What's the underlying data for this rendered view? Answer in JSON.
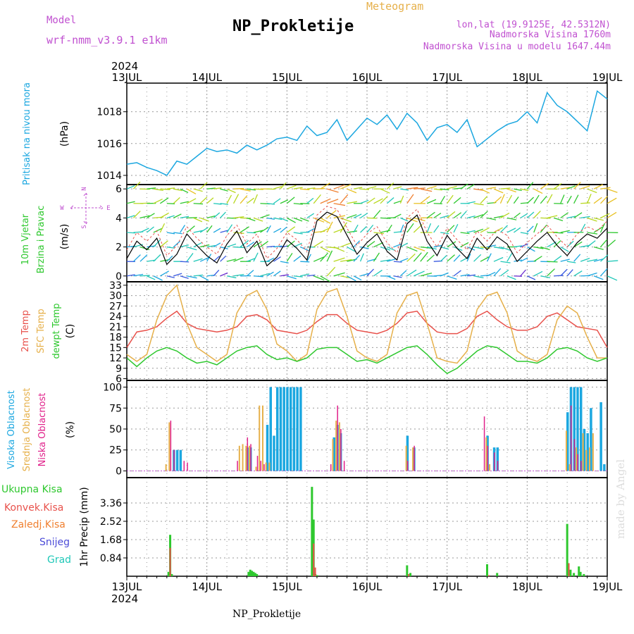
{
  "header": {
    "model_label": "Model",
    "model_name": "wrf-nmm_v3.9.1  e1km",
    "title": "NP_Prokletije",
    "meteogram_label": "Meteogram",
    "location_lines": [
      "lon,lat (19.9125E, 42.5312N)",
      "Nadmorska Visina 1760m",
      "Nadmorska Visina u modelu 1647.44m"
    ],
    "year": "2024"
  },
  "footer": {
    "station": "NP_Prokletije",
    "credit": "made by Angel",
    "year": "2024"
  },
  "colors": {
    "pressure": "#1ba7e0",
    "temp2m": "#e8514b",
    "sfc_temp": "#e6b04a",
    "dewpoint": "#2ec82e",
    "cloud_high": "#1ba7e0",
    "cloud_mid": "#e6b04a",
    "cloud_low": "#e0208a",
    "precip_total": "#2ec82e",
    "precip_conv": "#e8514b",
    "precip_frozen": "#f08030",
    "snow": "#4c4cd8",
    "hail": "#20c8b8",
    "wind_speed": "#000000",
    "wind_axis_label": "#c050d0",
    "credit": "#dddddd"
  },
  "chart_data": [
    {
      "type": "line",
      "panel": "pressure",
      "ylabel_left": "Pritisak na nivou mora",
      "ylabel_unit": "(hPa)",
      "x_ticks": [
        "13JUL",
        "14JUL",
        "15JUL",
        "16JUL",
        "17JUL",
        "18JUL",
        "19JUL"
      ],
      "ylim": [
        1013.5,
        1019.8
      ],
      "yticks": [
        1014,
        1016,
        1018
      ],
      "grid": true,
      "x_hours": [
        0,
        3,
        6,
        9,
        12,
        15,
        18,
        21,
        24,
        27,
        30,
        33,
        36,
        39,
        42,
        45,
        48,
        51,
        54,
        57,
        60,
        63,
        66,
        69,
        72,
        75,
        78,
        81,
        84,
        87,
        90,
        93,
        96,
        99,
        102,
        105,
        108,
        111,
        114,
        117,
        120,
        123,
        126,
        129,
        132,
        135,
        138,
        141,
        144
      ],
      "series": [
        {
          "values": [
            1014.7,
            1014.8,
            1014.5,
            1014.3,
            1014.0,
            1014.9,
            1014.7,
            1015.2,
            1015.7,
            1015.5,
            1015.6,
            1015.4,
            1015.9,
            1015.6,
            1015.9,
            1016.3,
            1016.4,
            1016.2,
            1017.1,
            1016.5,
            1016.7,
            1017.5,
            1016.2,
            1016.9,
            1017.6,
            1017.2,
            1017.8,
            1016.9,
            1017.9,
            1017.3,
            1016.2,
            1017.0,
            1017.2,
            1016.7,
            1017.5,
            1015.8,
            1016.3,
            1016.8,
            1017.2,
            1017.4,
            1018.0,
            1017.3,
            1019.2,
            1018.4,
            1018.0,
            1017.4,
            1016.8,
            1019.3,
            1018.8
          ]
        }
      ]
    },
    {
      "type": "line",
      "panel": "wind",
      "ylabel_left": [
        "10m Vjetar",
        "Brzina i Pravac"
      ],
      "ylabel_unit": "(m/s)",
      "compass": [
        "N",
        "E",
        "W",
        "S"
      ],
      "ylim": [
        -0.4,
        6.3
      ],
      "yticks": [
        0,
        2,
        4,
        6
      ],
      "grid": true,
      "x_hours": [
        0,
        3,
        6,
        9,
        12,
        15,
        18,
        21,
        24,
        27,
        30,
        33,
        36,
        39,
        42,
        45,
        48,
        51,
        54,
        57,
        60,
        63,
        66,
        69,
        72,
        75,
        78,
        81,
        84,
        87,
        90,
        93,
        96,
        99,
        102,
        105,
        108,
        111,
        114,
        117,
        120,
        123,
        126,
        129,
        132,
        135,
        138,
        141,
        144
      ],
      "series": [
        {
          "name": "speed",
          "values": [
            1.2,
            2.4,
            1.8,
            2.6,
            0.8,
            1.5,
            2.9,
            2.1,
            1.4,
            0.9,
            2.2,
            3.1,
            1.6,
            2.4,
            0.7,
            1.3,
            2.5,
            1.9,
            1.1,
            3.8,
            4.4,
            4.1,
            2.8,
            1.5,
            2.3,
            2.9,
            1.7,
            1.1,
            3.6,
            4.2,
            2.4,
            1.4,
            2.8,
            1.9,
            1.2,
            2.6,
            1.8,
            2.7,
            2.2,
            1.0,
            1.7,
            2.4,
            3.0,
            2.1,
            1.4,
            2.3,
            2.9,
            2.6,
            3.3
          ]
        },
        {
          "name": "gust",
          "values": [
            1.8,
            3.0,
            2.4,
            3.1,
            1.4,
            2.1,
            3.4,
            2.6,
            2.0,
            1.5,
            2.8,
            3.5,
            2.2,
            2.9,
            1.2,
            1.9,
            3.0,
            2.5,
            1.7,
            4.2,
            4.8,
            4.6,
            3.3,
            2.1,
            2.9,
            3.4,
            2.3,
            1.6,
            4.0,
            4.6,
            3.0,
            2.0,
            3.3,
            2.5,
            1.8,
            3.1,
            2.4,
            3.2,
            2.8,
            1.6,
            2.3,
            2.9,
            3.5,
            2.7,
            2.0,
            2.9,
            3.4,
            3.1,
            3.8
          ]
        }
      ]
    },
    {
      "type": "line",
      "panel": "temperature",
      "ylabel_left": [
        "2m Temp",
        "SFC Temp",
        "dewpt Temp"
      ],
      "ylabel_unit": "(C)",
      "ylim": [
        5.5,
        34
      ],
      "yticks": [
        6,
        9,
        12,
        15,
        18,
        21,
        24,
        27,
        30,
        33
      ],
      "grid": true,
      "x_hours": [
        0,
        3,
        6,
        9,
        12,
        15,
        18,
        21,
        24,
        27,
        30,
        33,
        36,
        39,
        42,
        45,
        48,
        51,
        54,
        57,
        60,
        63,
        66,
        69,
        72,
        75,
        78,
        81,
        84,
        87,
        90,
        93,
        96,
        99,
        102,
        105,
        108,
        111,
        114,
        117,
        120,
        123,
        126,
        129,
        132,
        135,
        138,
        141,
        144
      ],
      "series": [
        {
          "name": "2m Temp",
          "values": [
            15,
            19.5,
            20,
            21,
            23.5,
            25.5,
            22,
            20.5,
            20,
            19.5,
            20,
            21,
            24,
            24.5,
            23,
            20,
            19.5,
            19,
            20,
            22.5,
            24.5,
            24.5,
            22,
            20,
            19.5,
            19,
            20,
            22,
            25,
            25.5,
            22,
            19.5,
            19,
            19,
            20.5,
            24,
            25.5,
            23,
            21,
            20,
            20,
            21,
            24,
            25,
            23,
            21,
            20.5,
            20,
            15
          ]
        },
        {
          "name": "SFC Temp",
          "values": [
            13,
            11,
            13,
            23,
            30,
            33,
            22,
            15,
            13,
            11,
            13,
            25,
            30,
            31.5,
            26,
            16,
            14,
            11,
            13,
            26,
            31,
            32,
            24,
            14,
            12,
            11,
            13,
            25,
            30,
            31,
            22,
            12,
            11,
            10.5,
            14,
            26,
            30,
            31,
            25,
            14,
            12,
            11,
            13,
            23,
            27,
            25,
            18,
            12,
            12
          ]
        },
        {
          "name": "dewpt Temp",
          "values": [
            12,
            9.5,
            12,
            14,
            15,
            14,
            12,
            10.5,
            11,
            10,
            12,
            14,
            15,
            15.5,
            13,
            11.5,
            12,
            11,
            12,
            14.5,
            15,
            15,
            13,
            11,
            11.5,
            10.5,
            12,
            13.5,
            15,
            15.5,
            13,
            10,
            7.5,
            9,
            11.5,
            14,
            15.5,
            15,
            13,
            11,
            11,
            10.5,
            12,
            14.5,
            15,
            14,
            12,
            11,
            12
          ]
        }
      ]
    },
    {
      "type": "bar",
      "panel": "cloud",
      "ylabel_left": [
        "Visoka Oblacnost",
        "Srednja Oblacnost",
        "Niska Oblacnost"
      ],
      "ylabel_unit": "(%)",
      "ylim": [
        0,
        100
      ],
      "yticks": [
        0,
        25,
        50,
        75,
        100
      ],
      "grid": true,
      "series": [
        {
          "name": "Visoka Oblacnost",
          "x_hours": [
            14,
            15,
            16,
            36,
            37,
            42,
            43,
            44,
            45,
            46,
            47,
            48,
            49,
            50,
            51,
            52,
            53,
            54,
            62,
            63,
            64,
            84,
            86,
            108,
            110,
            111,
            132,
            133,
            134,
            135,
            136,
            137,
            138,
            139,
            140,
            141,
            142,
            143
          ],
          "values": [
            25,
            25,
            25,
            28,
            28,
            55,
            100,
            42,
            100,
            100,
            100,
            100,
            100,
            100,
            100,
            100,
            0,
            0,
            40,
            55,
            45,
            42,
            28,
            42,
            28,
            28,
            70,
            100,
            100,
            100,
            100,
            50,
            45,
            75,
            0,
            0,
            82,
            8
          ]
        },
        {
          "name": "Srednja Oblacnost",
          "x_hours": [
            12,
            13,
            34,
            35,
            36,
            37,
            39,
            40,
            41,
            42,
            43,
            62,
            63,
            64,
            84,
            86,
            108,
            109,
            132,
            133,
            135,
            137,
            138,
            139,
            140
          ],
          "values": [
            8,
            58,
            30,
            32,
            30,
            30,
            5,
            78,
            78,
            10,
            10,
            38,
            60,
            58,
            30,
            28,
            40,
            8,
            48,
            8,
            28,
            45,
            25,
            28,
            45
          ]
        },
        {
          "name": "Niska Oblacnost",
          "x_hours": [
            13,
            14,
            17,
            18,
            33,
            36,
            37,
            39,
            40,
            41,
            61,
            63,
            64,
            65,
            84,
            86,
            107,
            108,
            110,
            111,
            133,
            134,
            135,
            136
          ],
          "values": [
            60,
            25,
            12,
            10,
            12,
            40,
            32,
            18,
            12,
            8,
            8,
            78,
            50,
            12,
            12,
            30,
            65,
            30,
            22,
            12,
            78,
            38,
            20,
            12
          ]
        }
      ]
    },
    {
      "type": "bar",
      "panel": "precip",
      "ylabel_left": [
        "Ukupna Kisa",
        "Konvek.Kisa",
        "Zaledj.Kisa",
        "Snijeg",
        "Grad"
      ],
      "ylabel_unit": "1hr Precip (mm)",
      "ylim": [
        0,
        4.2
      ],
      "yticks": [
        0.84,
        1.68,
        2.52,
        3.36
      ],
      "grid": true,
      "series": [
        {
          "name": "Ukupna Kisa",
          "x_hours": [
            12.5,
            13,
            13.5,
            36.5,
            37,
            37.5,
            38,
            38.5,
            39,
            55.5,
            56,
            56.5,
            57,
            84,
            85,
            108,
            111,
            132,
            133,
            134,
            135.5,
            136,
            137
          ],
          "values": [
            0.2,
            1.9,
            0.1,
            0.2,
            0.3,
            0.25,
            0.2,
            0.15,
            0.1,
            4.1,
            2.6,
            0.1,
            0.05,
            0.5,
            0.15,
            0.55,
            0.15,
            2.4,
            0.3,
            0.15,
            0.45,
            0.2,
            0.1
          ]
        },
        {
          "name": "Konvek.Kisa",
          "x_hours": [
            13,
            56,
            56.5,
            84.5,
            108.5,
            132.5
          ],
          "values": [
            1.3,
            1.5,
            0.4,
            0.1,
            0.05,
            0.6
          ]
        }
      ]
    }
  ]
}
